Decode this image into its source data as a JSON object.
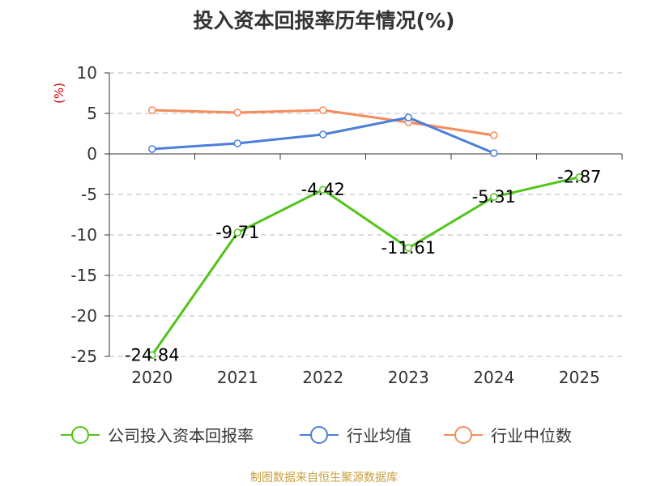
{
  "chart_data": {
    "type": "line",
    "title": "投入资本回报率历年情况(%)",
    "ylabel": "(%)",
    "xlabel": "",
    "categories": [
      "2020",
      "2021",
      "2022",
      "2023",
      "2024",
      "2025"
    ],
    "ylim": [
      -25,
      10
    ],
    "yticks": [
      10,
      5,
      0,
      -5,
      -10,
      -15,
      -20,
      -25
    ],
    "grid": true,
    "legend_position": "bottom",
    "series": [
      {
        "name": "公司投入资本回报率",
        "color": "#52c41a",
        "values": [
          -24.84,
          -9.71,
          -4.42,
          -11.61,
          -5.31,
          -2.87
        ],
        "labels": [
          "-24.84",
          "-9.71",
          "-4.42",
          "-11.61",
          "-5.31",
          "-2.87"
        ]
      },
      {
        "name": "行业均值",
        "color": "#4a7fdb",
        "values": [
          0.6,
          1.3,
          2.4,
          4.5,
          0.1,
          null
        ]
      },
      {
        "name": "行业中位数",
        "color": "#f58c5d",
        "values": [
          5.4,
          5.1,
          5.4,
          3.9,
          2.3,
          null
        ]
      }
    ]
  },
  "source_note": "制图数据来自恒生聚源数据库",
  "colors": {
    "source_note": "#c8a040",
    "ylabel": "#cc0000"
  }
}
